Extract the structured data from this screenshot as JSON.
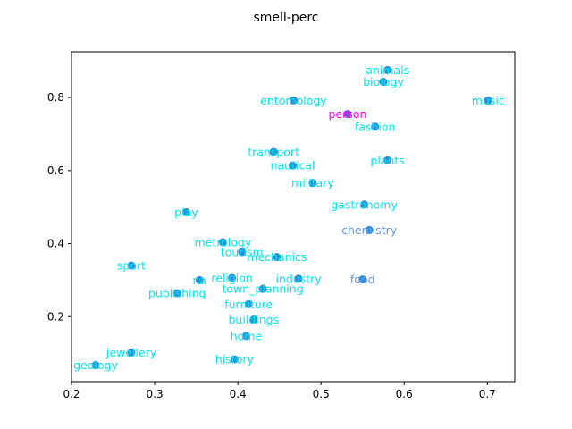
{
  "chart_data": {
    "type": "scatter",
    "title": "smell-perc",
    "xlabel": "",
    "ylabel": "",
    "xlim": [
      0.2,
      0.733
    ],
    "ylim": [
      0.022,
      0.925
    ],
    "xticks": [
      "0.2",
      "0.3",
      "0.4",
      "0.5",
      "0.6",
      "0.7"
    ],
    "xtick_values": [
      0.2,
      0.3,
      0.4,
      0.5,
      0.6,
      0.7
    ],
    "yticks": [
      "0.2",
      "0.4",
      "0.6",
      "0.8"
    ],
    "ytick_values": [
      0.2,
      0.4,
      0.6,
      0.8
    ],
    "grid": false,
    "colors": {
      "default_label": "#00e5ee",
      "chemistry_label": "#6495ed",
      "food_label": "#6495ed",
      "person_label": "#ff00ff",
      "point_fill": "#1f77b4",
      "person_point": "#7b52d6",
      "default_point": "#2a8fd6"
    },
    "points": [
      {
        "label": "animals",
        "x": 0.58,
        "y": 0.875,
        "label_color": "#00e5ee"
      },
      {
        "label": "biology",
        "x": 0.575,
        "y": 0.843,
        "label_color": "#00e5ee"
      },
      {
        "label": "music",
        "x": 0.701,
        "y": 0.792,
        "label_color": "#00e5ee"
      },
      {
        "label": "entomology",
        "x": 0.467,
        "y": 0.792,
        "label_color": "#00e5ee"
      },
      {
        "label": "person",
        "x": 0.532,
        "y": 0.755,
        "label_color": "#ff00ff"
      },
      {
        "label": "fashion",
        "x": 0.565,
        "y": 0.72,
        "label_color": "#00e5ee"
      },
      {
        "label": "transport",
        "x": 0.443,
        "y": 0.651,
        "label_color": "#00e5ee"
      },
      {
        "label": "plants",
        "x": 0.58,
        "y": 0.628,
        "label_color": "#00e5ee"
      },
      {
        "label": "nautical",
        "x": 0.466,
        "y": 0.614,
        "label_color": "#00e5ee"
      },
      {
        "label": "military",
        "x": 0.49,
        "y": 0.566,
        "label_color": "#00e5ee"
      },
      {
        "label": "gastronomy",
        "x": 0.552,
        "y": 0.507,
        "label_color": "#00e5ee"
      },
      {
        "label": "play",
        "x": 0.338,
        "y": 0.486,
        "label_color": "#00e5ee"
      },
      {
        "label": "chemistry",
        "x": 0.558,
        "y": 0.437,
        "label_color": "#6495ed"
      },
      {
        "label": "metrology",
        "x": 0.382,
        "y": 0.404,
        "label_color": "#00e5ee"
      },
      {
        "label": "tourism",
        "x": 0.405,
        "y": 0.377,
        "label_color": "#00e5ee"
      },
      {
        "label": "mechanics",
        "x": 0.447,
        "y": 0.363,
        "label_color": "#00e5ee"
      },
      {
        "label": "sport",
        "x": 0.272,
        "y": 0.34,
        "label_color": "#00e5ee"
      },
      {
        "label": "religion",
        "x": 0.393,
        "y": 0.306,
        "label_color": "#00e5ee"
      },
      {
        "label": "industry",
        "x": 0.473,
        "y": 0.304,
        "label_color": "#00e5ee"
      },
      {
        "label": "food",
        "x": 0.55,
        "y": 0.302,
        "label_color": "#6495ed"
      },
      {
        "label": "na",
        "x": 0.354,
        "y": 0.3,
        "label_color": "#00e5ee"
      },
      {
        "label": "town_planning",
        "x": 0.43,
        "y": 0.276,
        "label_color": "#00e5ee"
      },
      {
        "label": "publishing",
        "x": 0.327,
        "y": 0.264,
        "label_color": "#00e5ee"
      },
      {
        "label": "furniture",
        "x": 0.413,
        "y": 0.234,
        "label_color": "#00e5ee"
      },
      {
        "label": "buildings",
        "x": 0.419,
        "y": 0.192,
        "label_color": "#00e5ee"
      },
      {
        "label": "home",
        "x": 0.41,
        "y": 0.147,
        "label_color": "#00e5ee"
      },
      {
        "label": "jewellery",
        "x": 0.272,
        "y": 0.102,
        "label_color": "#00e5ee"
      },
      {
        "label": "history",
        "x": 0.396,
        "y": 0.083,
        "label_color": "#00e5ee"
      },
      {
        "label": "geology",
        "x": 0.229,
        "y": 0.067,
        "label_color": "#00e5ee"
      }
    ]
  }
}
